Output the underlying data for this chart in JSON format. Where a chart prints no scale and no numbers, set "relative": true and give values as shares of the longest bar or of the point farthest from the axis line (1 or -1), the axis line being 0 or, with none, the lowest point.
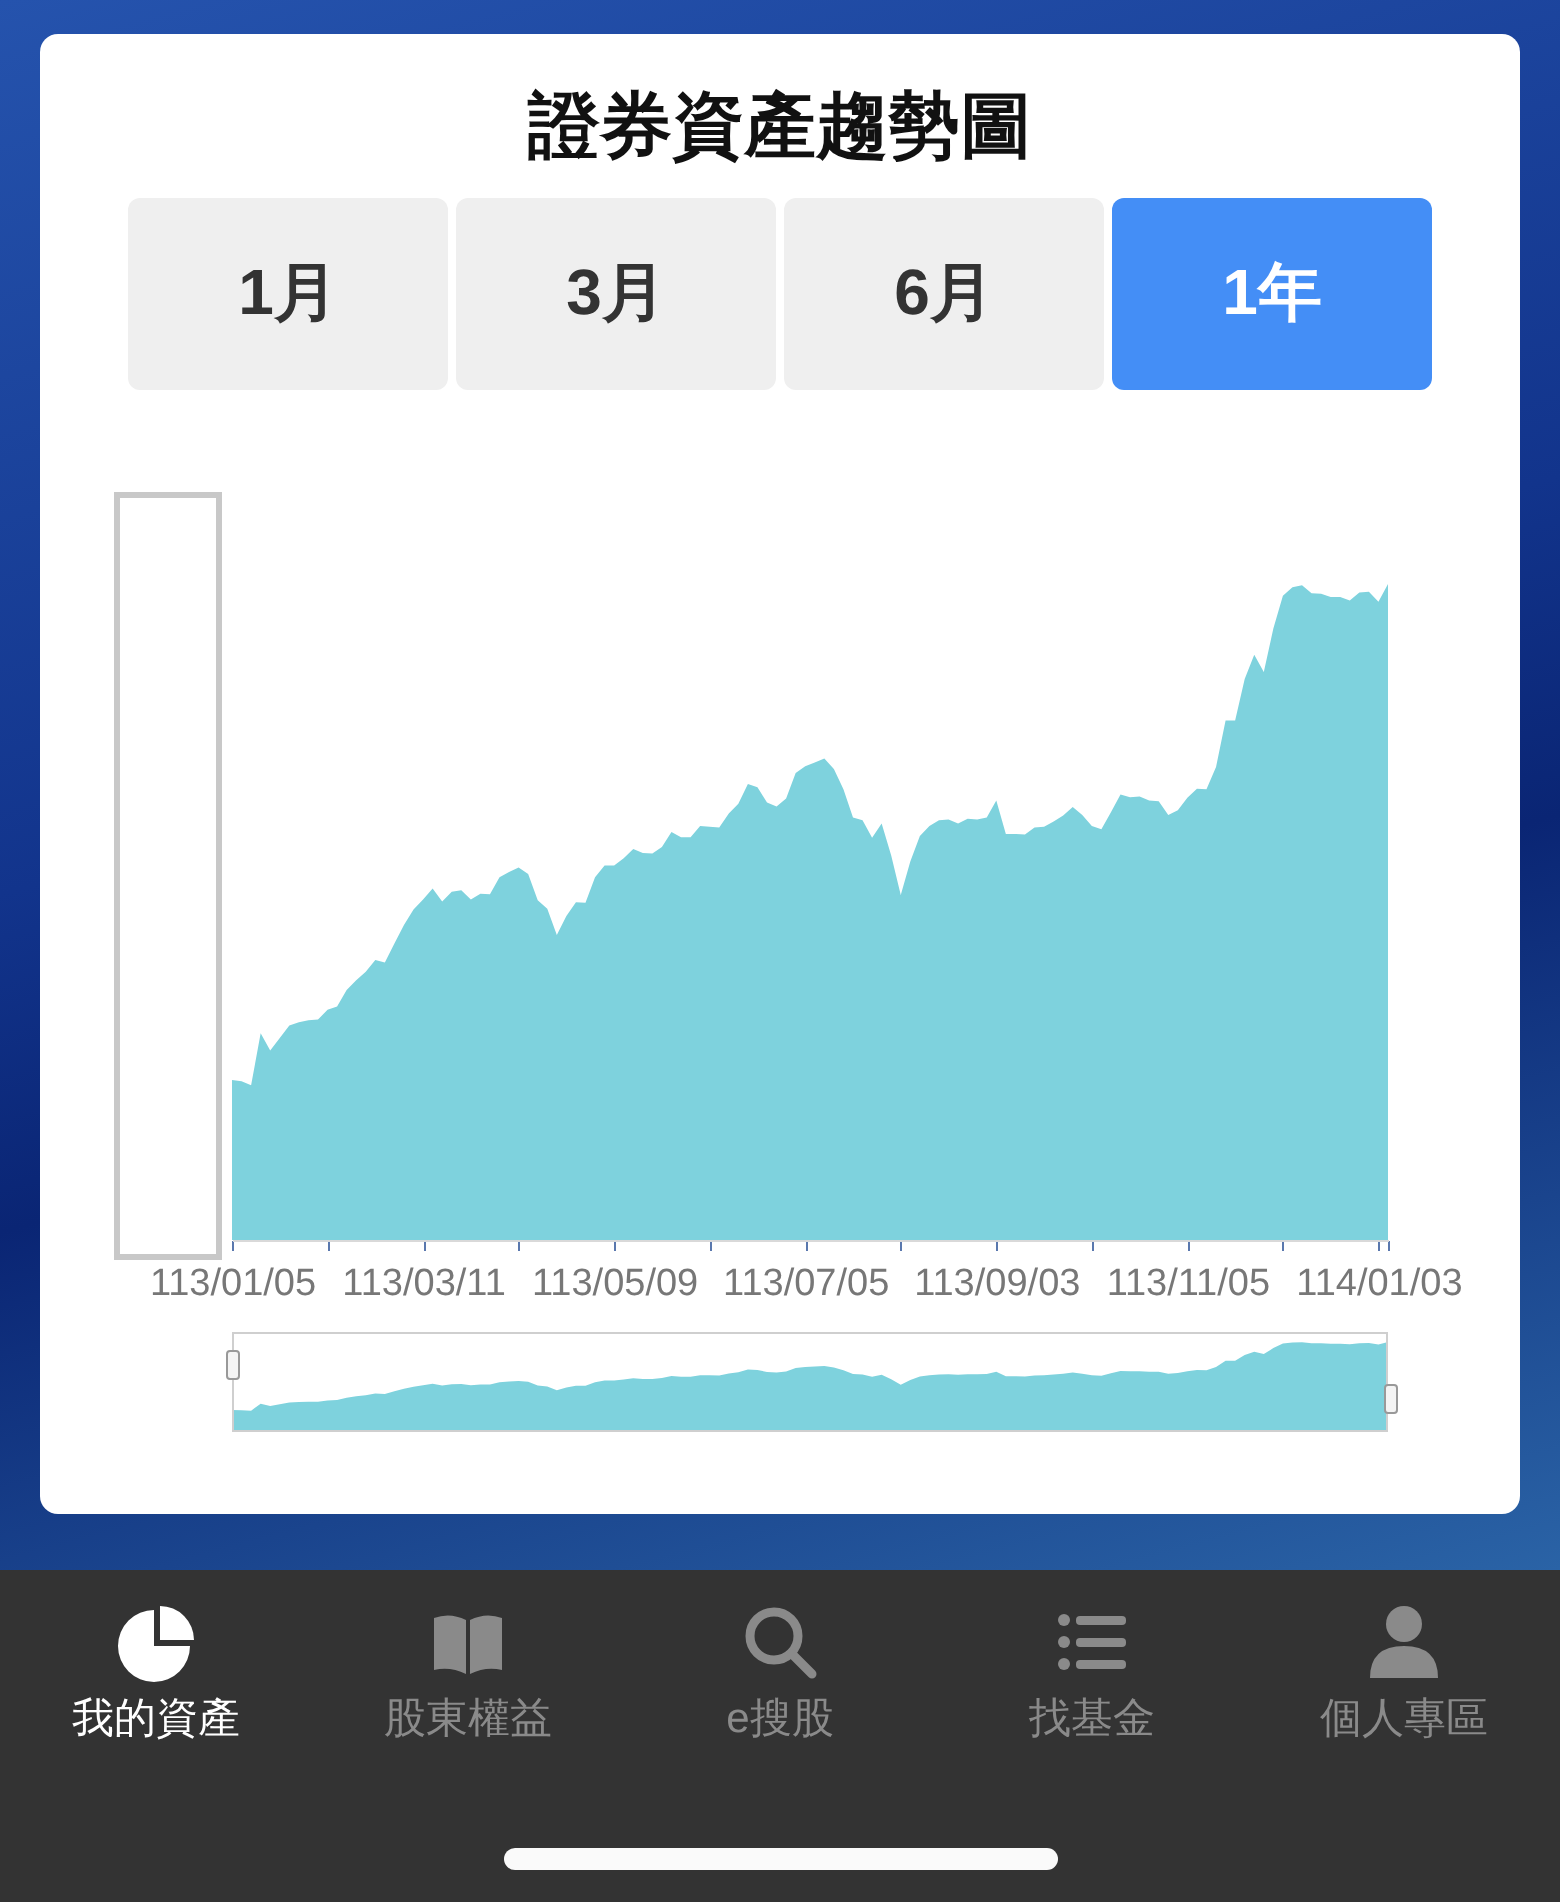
{
  "chart_data": {
    "type": "area",
    "title": "證券資產趨勢圖",
    "relative": true,
    "color": "#7ed2dd",
    "categories": [
      "113/01/05",
      null,
      null,
      null,
      null,
      null,
      null,
      null,
      null,
      null,
      null,
      null,
      null,
      null,
      null,
      null,
      null,
      null,
      null,
      null,
      "113/03/11",
      null,
      null,
      null,
      null,
      null,
      null,
      null,
      null,
      null,
      null,
      null,
      null,
      null,
      null,
      null,
      null,
      null,
      null,
      null,
      "113/05/09",
      null,
      null,
      null,
      null,
      null,
      null,
      null,
      null,
      null,
      null,
      null,
      null,
      null,
      null,
      null,
      null,
      null,
      null,
      null,
      "113/07/05",
      null,
      null,
      null,
      null,
      null,
      null,
      null,
      null,
      null,
      null,
      null,
      null,
      null,
      null,
      null,
      null,
      null,
      null,
      null,
      "113/09/03",
      null,
      null,
      null,
      null,
      null,
      null,
      null,
      null,
      null,
      null,
      null,
      null,
      null,
      null,
      null,
      null,
      null,
      null,
      null,
      "113/11/05",
      null,
      null,
      null,
      null,
      null,
      null,
      null,
      null,
      null,
      null,
      null,
      null,
      null,
      null,
      null,
      null,
      null,
      null,
      null,
      "114/01/03",
      null
    ],
    "values": [
      0.244,
      0.242,
      0.236,
      0.315,
      0.289,
      0.308,
      0.327,
      0.332,
      0.335,
      0.336,
      0.351,
      0.356,
      0.381,
      0.396,
      0.409,
      0.427,
      0.423,
      0.452,
      0.48,
      0.504,
      0.519,
      0.536,
      0.516,
      0.531,
      0.533,
      0.519,
      0.528,
      0.527,
      0.553,
      0.561,
      0.568,
      0.558,
      0.518,
      0.505,
      0.465,
      0.494,
      0.515,
      0.514,
      0.553,
      0.571,
      0.571,
      0.582,
      0.596,
      0.59,
      0.589,
      0.599,
      0.622,
      0.614,
      0.614,
      0.631,
      0.63,
      0.629,
      0.65,
      0.665,
      0.695,
      0.69,
      0.667,
      0.661,
      0.673,
      0.712,
      0.722,
      0.728,
      0.734,
      0.718,
      0.687,
      0.644,
      0.64,
      0.613,
      0.635,
      0.586,
      0.526,
      0.577,
      0.616,
      0.631,
      0.64,
      0.641,
      0.635,
      0.642,
      0.641,
      0.644,
      0.67,
      0.619,
      0.619,
      0.618,
      0.629,
      0.63,
      0.638,
      0.647,
      0.66,
      0.648,
      0.631,
      0.626,
      0.652,
      0.679,
      0.675,
      0.676,
      0.67,
      0.669,
      0.648,
      0.655,
      0.674,
      0.688,
      0.687,
      0.721,
      0.792,
      0.792,
      0.855,
      0.892,
      0.866,
      0.932,
      0.982,
      0.995,
      0.998,
      0.986,
      0.985,
      0.98,
      0.98,
      0.975,
      0.987,
      0.988,
      0.973,
      1.0
    ],
    "annotations": [
      "1月",
      "3月",
      "6月",
      "1年",
      "我的資產",
      "股東權益",
      "e搜股",
      "找基金",
      "個人專區"
    ]
  }
}
